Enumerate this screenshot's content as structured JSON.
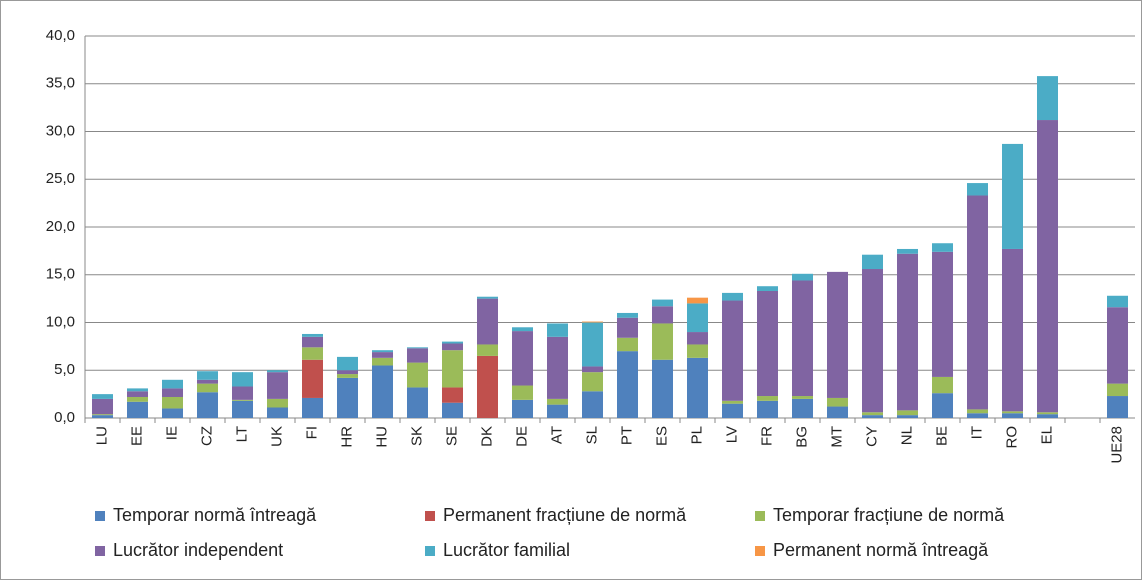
{
  "chart_data": {
    "type": "stacked_bar",
    "categories": [
      "LU",
      "EE",
      "IE",
      "CZ",
      "LT",
      "UK",
      "FI",
      "HR",
      "HU",
      "SK",
      "SE",
      "DK",
      "DE",
      "AT",
      "SL",
      "PT",
      "ES",
      "PL",
      "LV",
      "FR",
      "BG",
      "MT",
      "CY",
      "NL",
      "BE",
      "IT",
      "RO",
      "EL",
      null,
      "UE28"
    ],
    "series": [
      {
        "name": "Temporar normă întreagă",
        "color": "#4f81bd",
        "values": [
          0.3,
          1.7,
          1.0,
          2.7,
          1.8,
          1.1,
          2.1,
          4.2,
          5.5,
          3.2,
          1.6,
          0,
          1.9,
          1.4,
          2.8,
          7.0,
          6.1,
          6.3,
          1.5,
          1.8,
          2.0,
          1.2,
          0.3,
          0.3,
          2.6,
          0.5,
          0.5,
          0.4,
          null,
          2.3
        ]
      },
      {
        "name": "Permanent fracțiune de normă",
        "color": "#c0504d",
        "values": [
          0,
          0,
          0,
          0,
          0,
          0,
          4.0,
          0,
          0,
          0,
          1.6,
          6.5,
          0,
          0,
          0,
          0,
          0,
          0,
          0,
          0,
          0,
          0,
          0,
          0,
          0,
          0,
          0,
          0,
          null,
          0
        ]
      },
      {
        "name": "Temporar fracțiune de normă",
        "color": "#9bbb59",
        "values": [
          0.1,
          0.5,
          1.2,
          0.9,
          0.1,
          0.9,
          1.3,
          0.4,
          0.8,
          2.6,
          3.9,
          1.2,
          1.5,
          0.6,
          2.0,
          1.4,
          3.8,
          1.4,
          0.3,
          0.5,
          0.3,
          0.9,
          0.3,
          0.5,
          1.7,
          0.4,
          0.2,
          0.2,
          null,
          1.3
        ]
      },
      {
        "name": "Lucrător independent",
        "color": "#8064a2",
        "values": [
          1.6,
          0.6,
          0.9,
          0.4,
          1.4,
          2.8,
          1.1,
          0.4,
          0.6,
          1.5,
          0.7,
          4.8,
          5.7,
          6.5,
          0.6,
          2.1,
          1.8,
          1.3,
          10.5,
          11.0,
          12.1,
          13.2,
          15.0,
          16.4,
          13.1,
          22.4,
          17.0,
          30.6,
          null,
          8.0
        ]
      },
      {
        "name": "Lucrător familial",
        "color": "#4bacc6",
        "values": [
          0.5,
          0.3,
          0.9,
          0.9,
          1.5,
          0.2,
          0.3,
          1.4,
          0.2,
          0.1,
          0.2,
          0.2,
          0.4,
          1.4,
          4.6,
          0.5,
          0.7,
          3.0,
          0.8,
          0.5,
          0.7,
          0,
          1.5,
          0.5,
          0.9,
          1.3,
          11.0,
          4.6,
          null,
          1.2
        ]
      },
      {
        "name": "Permanent normă întreagă",
        "color": "#f79646",
        "values": [
          0,
          0,
          0,
          0,
          0,
          0,
          0,
          0,
          0,
          0,
          0,
          0,
          0,
          0,
          0.1,
          0,
          0,
          0.6,
          0,
          0,
          0,
          0,
          0,
          0,
          0,
          0,
          0,
          0,
          null,
          0
        ]
      }
    ],
    "ylim": [
      0,
      40
    ],
    "yticks": [
      {
        "value": 0,
        "label": "0,0"
      },
      {
        "value": 5,
        "label": "5,0"
      },
      {
        "value": 10,
        "label": "10,0"
      },
      {
        "value": 15,
        "label": "15,0"
      },
      {
        "value": 20,
        "label": "20,0"
      },
      {
        "value": 25,
        "label": "25,0"
      },
      {
        "value": 30,
        "label": "30,0"
      },
      {
        "value": 35,
        "label": "35,0"
      },
      {
        "value": 40,
        "label": "40,0"
      }
    ],
    "grid": true,
    "legend": "bottom"
  }
}
